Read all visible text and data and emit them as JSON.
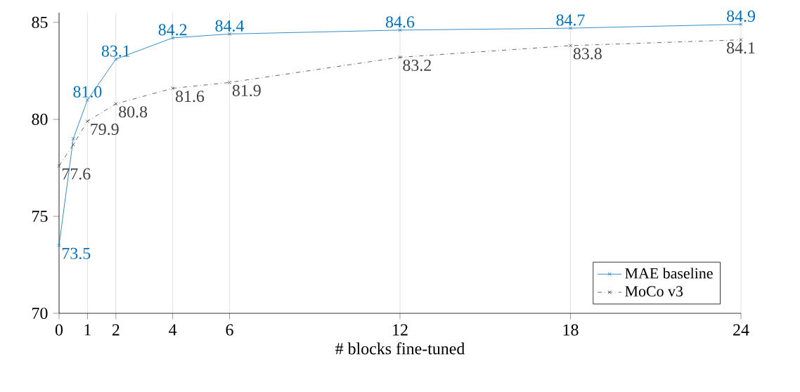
{
  "chart_data": {
    "type": "line",
    "xlabel": "# blocks fine-tuned",
    "xlim": [
      0,
      24
    ],
    "xticks": [
      0,
      1,
      2,
      4,
      6,
      12,
      18,
      24
    ],
    "ylim": [
      70,
      85.5
    ],
    "yticks": [
      70,
      75,
      80,
      85
    ],
    "grid": "x",
    "legend": "bottom right",
    "marker": "cross",
    "series": [
      {
        "name": "MAE baseline",
        "color": "#0072bd",
        "line_style": "solid",
        "x": [
          0,
          0.5,
          1,
          2,
          4,
          6,
          12,
          18,
          24
        ],
        "values": [
          73.5,
          79.0,
          81.0,
          83.1,
          84.2,
          84.4,
          84.6,
          84.7,
          84.9
        ],
        "value_labels": [
          "73.5",
          null,
          "81.0",
          "83.1",
          "84.2",
          "84.4",
          "84.6",
          "84.7",
          "84.9"
        ]
      },
      {
        "name": "MoCo v3",
        "color": "#404040",
        "line_style": "dashdot",
        "x": [
          0,
          0.5,
          1,
          2,
          4,
          6,
          12,
          18,
          24
        ],
        "values": [
          77.6,
          78.7,
          79.9,
          80.8,
          81.6,
          81.9,
          83.2,
          83.8,
          84.1
        ],
        "value_labels": [
          "77.6",
          null,
          "79.9",
          "80.8",
          "81.6",
          "81.9",
          "83.2",
          "83.8",
          "84.1"
        ]
      }
    ]
  }
}
